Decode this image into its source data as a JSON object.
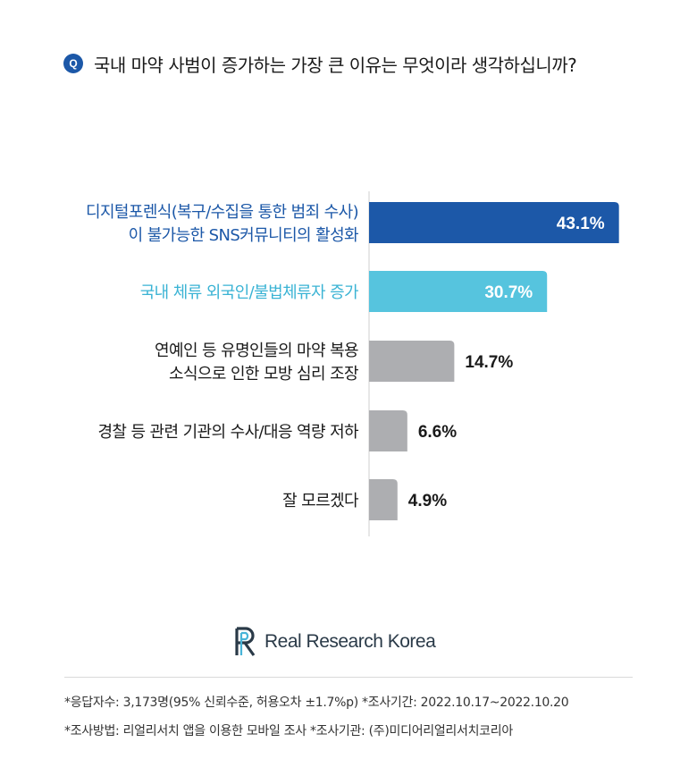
{
  "question": {
    "badge": "Q",
    "text": "국내 마약 사범이 증가하는 가장 큰 이유는 무엇이라 생각하십니까?"
  },
  "chart_data": {
    "type": "bar",
    "orientation": "horizontal",
    "categories": [
      [
        "디지털포렌식(복구/수집을 통한 범죄 수사)",
        "이 불가능한 SNS커뮤니티의 활성화"
      ],
      [
        "국내 체류 외국인/불법체류자 증가"
      ],
      [
        "연예인 등 유명인들의 마약 복용",
        "소식으로 인한 모방 심리 조장"
      ],
      [
        "경찰 등 관련 기관의 수사/대응 역량 저하"
      ],
      [
        "잘 모르겠다"
      ]
    ],
    "values": [
      43.1,
      30.7,
      14.7,
      6.6,
      4.9
    ],
    "value_labels": [
      "43.1%",
      "30.7%",
      "14.7%",
      "6.6%",
      "4.9%"
    ],
    "xlim": [
      0,
      45
    ],
    "colors": [
      "#1c58a8",
      "#56c4de",
      "#adaeb1",
      "#adaeb1",
      "#adaeb1"
    ],
    "label_colors": [
      "#1c58a8",
      "#3ab3d4",
      "#1a1a1a",
      "#1a1a1a",
      "#1a1a1a"
    ],
    "grid": false,
    "legend": "none"
  },
  "logo": {
    "text": "Real Research Korea",
    "icon": "rr-logo-icon",
    "colors": [
      "#2a3a48",
      "#48b4d8"
    ]
  },
  "footnotes": {
    "line1": "*응답자수: 3,173명(95% 신뢰수준, 허용오차 ±1.7%p)  *조사기간: 2022.10.17~2022.10.20",
    "line2": "*조사방법: 리얼리서치 앱을 이용한 모바일 조사  *조사기관: (주)미디어리얼리서치코리아"
  }
}
